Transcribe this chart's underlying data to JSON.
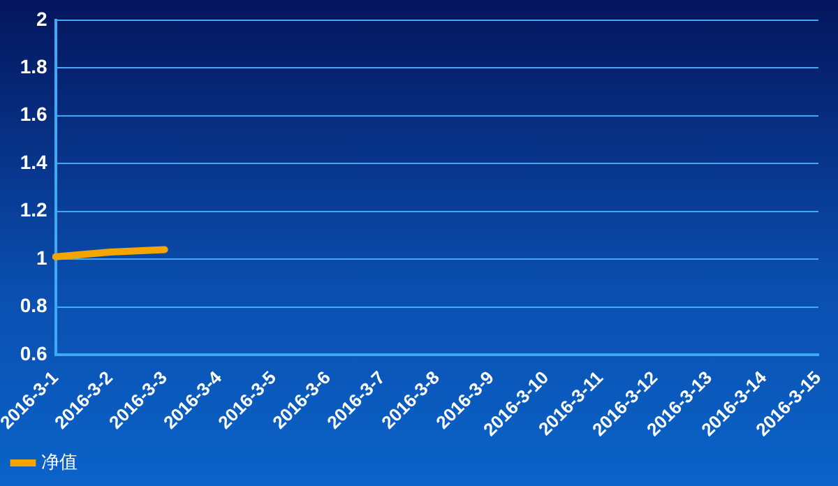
{
  "chart_data": {
    "type": "line",
    "categories": [
      "2016-3-1",
      "2016-3-2",
      "2016-3-3",
      "2016-3-4",
      "2016-3-5",
      "2016-3-6",
      "2016-3-7",
      "2016-3-8",
      "2016-3-9",
      "2016-3-10",
      "2016-3-11",
      "2016-3-12",
      "2016-3-13",
      "2016-3-14",
      "2016-3-15"
    ],
    "series": [
      {
        "name": "净值",
        "color": "#f5a500",
        "values": [
          1.01,
          1.03,
          1.04,
          null,
          null,
          null,
          null,
          null,
          null,
          null,
          null,
          null,
          null,
          null,
          null
        ]
      }
    ],
    "ylim": [
      0.6,
      2
    ],
    "yticks": [
      0.6,
      0.8,
      1,
      1.2,
      1.4,
      1.6,
      1.8,
      2
    ],
    "grid": "y",
    "legend": "bottom left",
    "marker": "none",
    "line_style": "solid"
  }
}
